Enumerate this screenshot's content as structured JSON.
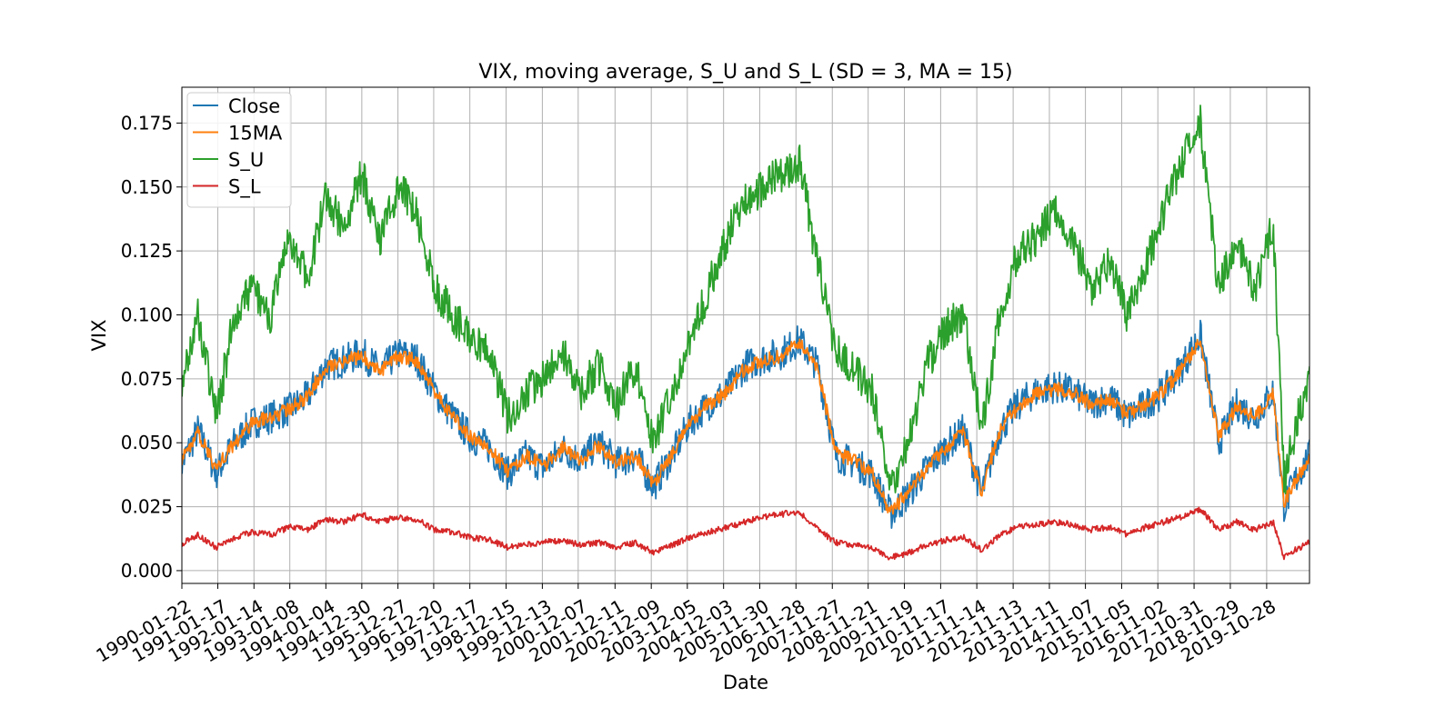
{
  "chart_data": {
    "type": "line",
    "title": "VIX, moving average, S_U and S_L (SD = 3, MA = 15)",
    "xlabel": "Date",
    "ylabel": "VIX",
    "x_tick_labels": [
      "1990-01-22",
      "1991-01-17",
      "1992-01-14",
      "1993-01-08",
      "1994-01-04",
      "1994-12-30",
      "1995-12-27",
      "1996-12-20",
      "1997-12-17",
      "1998-12-15",
      "1999-12-13",
      "2000-12-07",
      "2001-12-11",
      "2002-12-09",
      "2003-12-05",
      "2004-12-03",
      "2005-11-30",
      "2006-11-28",
      "2007-11-27",
      "2008-11-21",
      "2009-11-19",
      "2010-11-17",
      "2011-11-14",
      "2012-11-13",
      "2013-11-11",
      "2014-11-07",
      "2015-11-05",
      "2016-11-02",
      "2017-10-31",
      "2018-10-29",
      "2019-10-28"
    ],
    "xlim": [
      "1990-01-22",
      "2020-12-31"
    ],
    "y_ticks": [
      0.0,
      0.025,
      0.05,
      0.075,
      0.1,
      0.125,
      0.15,
      0.175
    ],
    "y_tick_labels": [
      "0.000",
      "0.025",
      "0.050",
      "0.075",
      "0.100",
      "0.125",
      "0.150",
      "0.175"
    ],
    "ylim": [
      -0.005,
      0.189
    ],
    "grid": true,
    "legend_position": "top-left",
    "x_years": [
      1990.0,
      1990.5,
      1991.0,
      1991.5,
      1992.0,
      1992.5,
      1993.0,
      1993.5,
      1994.0,
      1994.5,
      1995.0,
      1995.5,
      1996.0,
      1996.5,
      1997.0,
      1997.5,
      1998.0,
      1998.5,
      1999.0,
      1999.5,
      2000.0,
      2000.5,
      2001.0,
      2001.5,
      2002.0,
      2002.5,
      2003.0,
      2003.5,
      2004.0,
      2004.5,
      2005.0,
      2005.5,
      2006.0,
      2006.5,
      2007.0,
      2007.5,
      2008.0,
      2008.5,
      2009.0,
      2009.5,
      2010.0,
      2010.5,
      2011.0,
      2011.5,
      2012.0,
      2012.5,
      2013.0,
      2013.5,
      2014.0,
      2014.5,
      2015.0,
      2015.5,
      2016.0,
      2016.5,
      2017.0,
      2017.5,
      2018.0,
      2018.5,
      2019.0,
      2019.5,
      2020.0,
      2020.3,
      2020.6,
      2021.0
    ],
    "series": [
      {
        "name": "Close",
        "color": "#1f77b4",
        "values": [
          0.04,
          0.055,
          0.038,
          0.05,
          0.058,
          0.06,
          0.063,
          0.068,
          0.08,
          0.082,
          0.085,
          0.078,
          0.085,
          0.083,
          0.07,
          0.06,
          0.052,
          0.048,
          0.038,
          0.045,
          0.04,
          0.048,
          0.043,
          0.05,
          0.042,
          0.045,
          0.033,
          0.045,
          0.058,
          0.065,
          0.07,
          0.08,
          0.083,
          0.085,
          0.09,
          0.08,
          0.045,
          0.042,
          0.038,
          0.022,
          0.03,
          0.04,
          0.048,
          0.055,
          0.03,
          0.055,
          0.065,
          0.07,
          0.072,
          0.07,
          0.065,
          0.068,
          0.06,
          0.065,
          0.07,
          0.08,
          0.092,
          0.05,
          0.065,
          0.06,
          0.07,
          0.025,
          0.035,
          0.045
        ]
      },
      {
        "name": "15MA",
        "color": "#ff7f0e",
        "values": [
          0.042,
          0.054,
          0.04,
          0.05,
          0.058,
          0.06,
          0.063,
          0.068,
          0.08,
          0.082,
          0.084,
          0.078,
          0.084,
          0.082,
          0.07,
          0.06,
          0.052,
          0.048,
          0.039,
          0.045,
          0.041,
          0.048,
          0.043,
          0.049,
          0.042,
          0.045,
          0.034,
          0.045,
          0.058,
          0.065,
          0.07,
          0.079,
          0.082,
          0.084,
          0.089,
          0.079,
          0.046,
          0.043,
          0.038,
          0.023,
          0.031,
          0.04,
          0.048,
          0.054,
          0.031,
          0.055,
          0.064,
          0.069,
          0.071,
          0.07,
          0.065,
          0.067,
          0.061,
          0.065,
          0.07,
          0.079,
          0.09,
          0.052,
          0.064,
          0.06,
          0.069,
          0.027,
          0.035,
          0.044
        ]
      },
      {
        "name": "S_U",
        "color": "#2ca02c",
        "values": [
          0.07,
          0.1,
          0.06,
          0.1,
          0.11,
          0.1,
          0.13,
          0.115,
          0.145,
          0.135,
          0.155,
          0.13,
          0.15,
          0.14,
          0.11,
          0.1,
          0.09,
          0.085,
          0.06,
          0.07,
          0.075,
          0.085,
          0.07,
          0.08,
          0.065,
          0.08,
          0.05,
          0.07,
          0.09,
          0.11,
          0.13,
          0.145,
          0.15,
          0.155,
          0.16,
          0.12,
          0.085,
          0.08,
          0.07,
          0.03,
          0.05,
          0.08,
          0.095,
          0.1,
          0.055,
          0.1,
          0.125,
          0.13,
          0.14,
          0.13,
          0.11,
          0.12,
          0.1,
          0.12,
          0.14,
          0.16,
          0.175,
          0.11,
          0.13,
          0.11,
          0.135,
          0.035,
          0.055,
          0.078
        ]
      },
      {
        "name": "S_L",
        "color": "#d62728",
        "values": [
          0.01,
          0.014,
          0.009,
          0.013,
          0.015,
          0.014,
          0.017,
          0.016,
          0.02,
          0.019,
          0.022,
          0.019,
          0.021,
          0.02,
          0.016,
          0.015,
          0.013,
          0.012,
          0.009,
          0.01,
          0.011,
          0.012,
          0.01,
          0.011,
          0.009,
          0.011,
          0.007,
          0.01,
          0.013,
          0.015,
          0.017,
          0.019,
          0.021,
          0.022,
          0.023,
          0.016,
          0.011,
          0.01,
          0.009,
          0.005,
          0.007,
          0.01,
          0.012,
          0.013,
          0.008,
          0.014,
          0.017,
          0.018,
          0.019,
          0.018,
          0.016,
          0.017,
          0.014,
          0.017,
          0.019,
          0.021,
          0.024,
          0.016,
          0.019,
          0.016,
          0.019,
          0.005,
          0.008,
          0.011
        ]
      }
    ]
  }
}
